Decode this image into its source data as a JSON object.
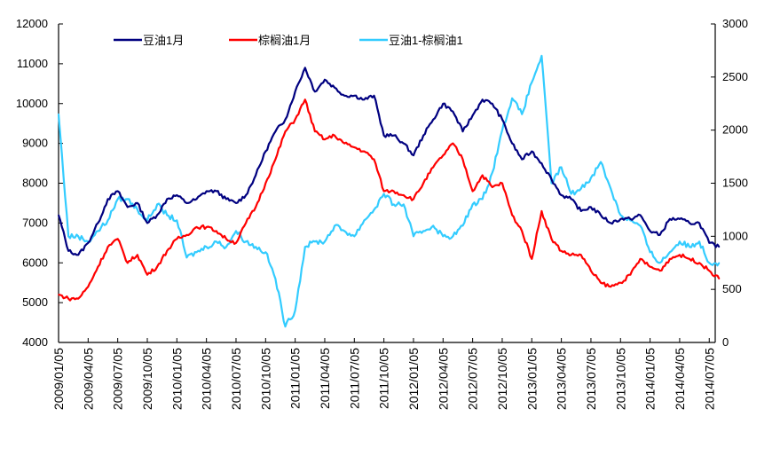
{
  "chart_data": {
    "type": "line",
    "title": "",
    "legend_position": "top",
    "grid": false,
    "x_tick_labels": [
      "2009/01/05",
      "2009/04/05",
      "2009/07/05",
      "2009/10/05",
      "2010/01/05",
      "2010/04/05",
      "2010/07/05",
      "2010/10/05",
      "2011/01/05",
      "2011/04/05",
      "2011/07/05",
      "2011/10/05",
      "2012/01/05",
      "2012/04/05",
      "2012/07/05",
      "2012/10/05",
      "2013/01/05",
      "2013/04/05",
      "2013/07/05",
      "2013/10/05",
      "2014/01/05",
      "2014/04/05",
      "2014/07/05"
    ],
    "y_left": {
      "min": 4000,
      "max": 12000,
      "step": 1000,
      "tick_labels": [
        "4000",
        "5000",
        "6000",
        "7000",
        "8000",
        "9000",
        "10000",
        "11000",
        "12000"
      ]
    },
    "y_right": {
      "min": 0,
      "max": 3000,
      "step": 500,
      "tick_labels": [
        "0",
        "500",
        "1000",
        "1500",
        "2000",
        "2500",
        "3000"
      ]
    },
    "x_start": "2009/01/05",
    "x_interval": "monthly",
    "series": [
      {
        "name": "豆油1月",
        "axis": "left",
        "color": "#000080",
        "values": [
          7200,
          6300,
          6200,
          6500,
          7000,
          7600,
          7800,
          7400,
          7500,
          7000,
          7200,
          7600,
          7700,
          7500,
          7600,
          7800,
          7800,
          7600,
          7500,
          7700,
          8200,
          8800,
          9300,
          9600,
          10300,
          10900,
          10300,
          10600,
          10400,
          10200,
          10200,
          10100,
          10200,
          9200,
          9200,
          9000,
          8700,
          9200,
          9600,
          10000,
          9800,
          9300,
          9700,
          10100,
          10000,
          9600,
          9000,
          8600,
          8800,
          8500,
          8100,
          7700,
          7600,
          7300,
          7400,
          7200,
          7000,
          7100,
          7100,
          7200,
          6800,
          6700,
          7100,
          7100,
          7000,
          7000,
          6500,
          6400
        ]
      },
      {
        "name": "棕榈油1月",
        "axis": "left",
        "color": "#ff0000",
        "values": [
          5200,
          5100,
          5100,
          5400,
          5900,
          6400,
          6600,
          6000,
          6200,
          5700,
          5900,
          6300,
          6600,
          6700,
          6900,
          6900,
          6800,
          6600,
          6500,
          7000,
          7400,
          8000,
          8600,
          9300,
          9600,
          10100,
          9300,
          9100,
          9200,
          9000,
          8900,
          8800,
          8600,
          7800,
          7800,
          7700,
          7600,
          8000,
          8400,
          8700,
          9000,
          8600,
          7800,
          8200,
          7900,
          8000,
          7200,
          6800,
          6100,
          7300,
          6600,
          6300,
          6200,
          6200,
          5800,
          5500,
          5400,
          5500,
          5700,
          6100,
          5900,
          5800,
          6100,
          6200,
          6100,
          6000,
          5800,
          5600
        ]
      },
      {
        "name": "豆油1-棕榈油1",
        "axis": "right",
        "color": "#33ccff",
        "values": [
          2150,
          1000,
          1000,
          950,
          1050,
          1150,
          1350,
          1350,
          1250,
          1150,
          1300,
          1200,
          1150,
          800,
          850,
          900,
          950,
          900,
          1050,
          950,
          900,
          850,
          600,
          150,
          300,
          900,
          950,
          950,
          1100,
          1050,
          1000,
          1150,
          1250,
          1400,
          1300,
          1300,
          1000,
          1050,
          1100,
          1000,
          1000,
          1100,
          1300,
          1350,
          1600,
          2000,
          2300,
          2150,
          2450,
          2700,
          1500,
          1650,
          1400,
          1450,
          1550,
          1700,
          1450,
          1200,
          1150,
          1100,
          850,
          750,
          850,
          950,
          900,
          950,
          750,
          750
        ]
      }
    ]
  }
}
